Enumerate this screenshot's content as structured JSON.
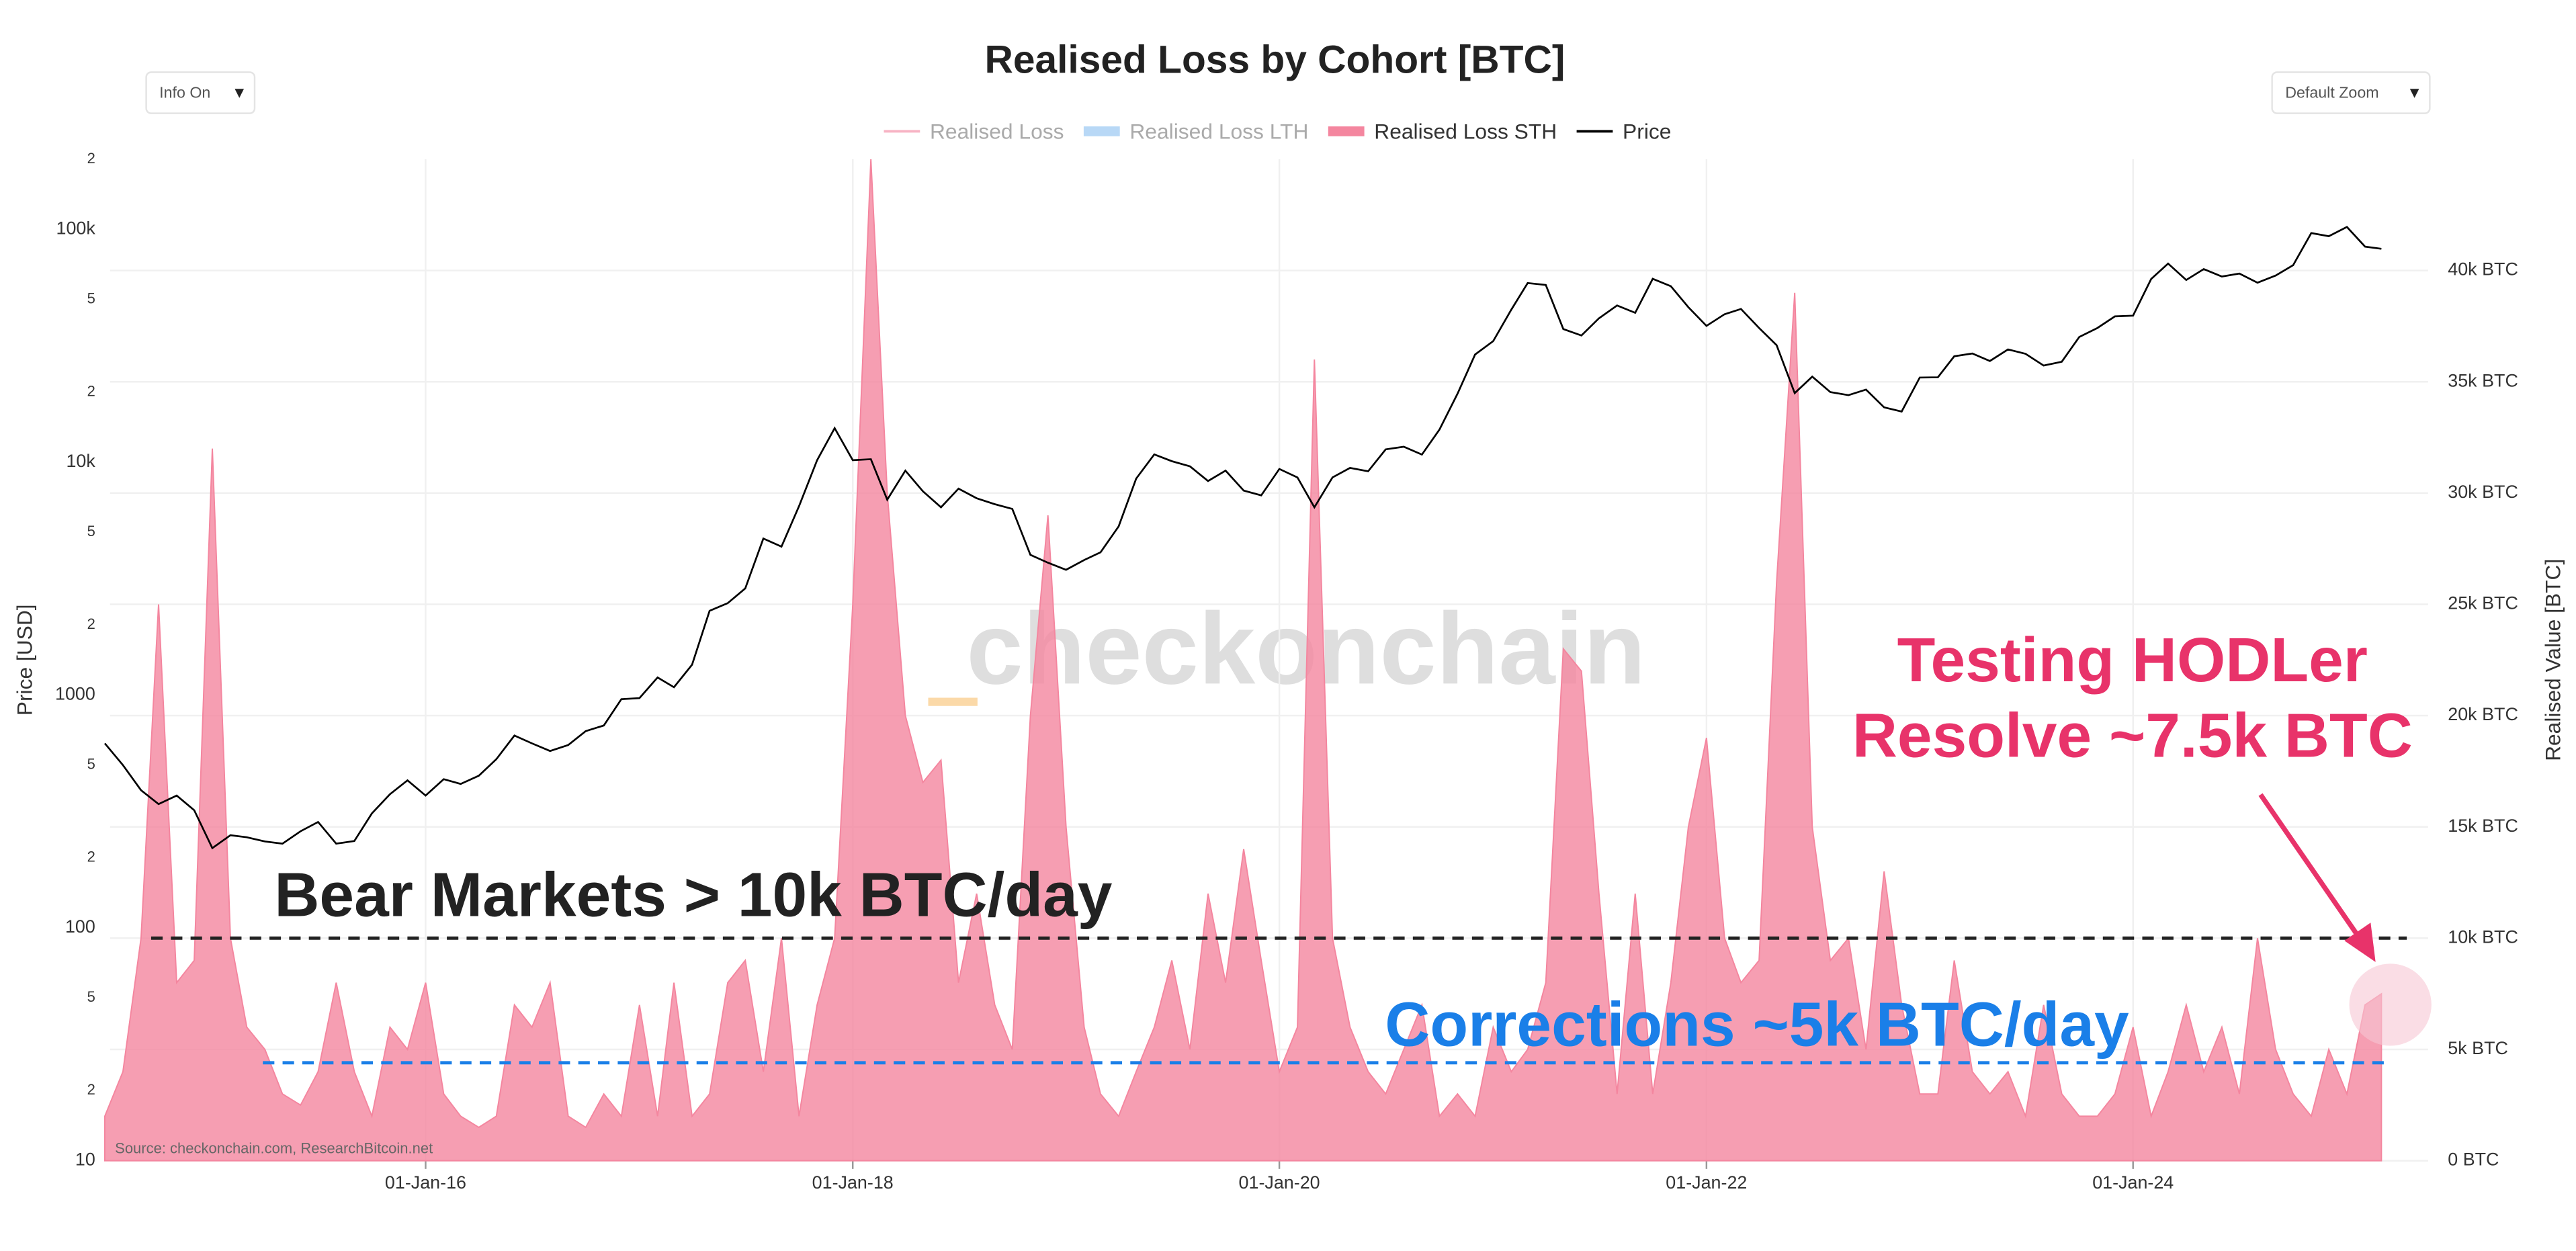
{
  "chart_data": {
    "type": "area-line",
    "title": "Realised Loss by Cohort [BTC]",
    "controls": {
      "info": "Info On",
      "zoom": "Default Zoom",
      "arrow": "▼"
    },
    "ylabel": "Price [USD]",
    "y2label": "Realised Value [BTC]",
    "watermark": "checkonchain",
    "source": "Source: checkonchain.com, ResearchBitcoin.net",
    "legend": [
      {
        "name": "Realised Loss",
        "color": "#f7b3c4",
        "visible": false,
        "symbol": "line"
      },
      {
        "name": "Realised Loss LTH",
        "color": "#b8d8f6",
        "visible": false,
        "symbol": "bar"
      },
      {
        "name": "Realised Loss STH",
        "color": "#f4869f",
        "visible": true,
        "symbol": "bar"
      },
      {
        "name": "Price",
        "color": "#000000",
        "visible": true,
        "symbol": "line"
      }
    ],
    "xlim": [
      "2014-07-10",
      "2025-05-20"
    ],
    "xticks": [
      {
        "value": "2016-01-01",
        "label": "01-Jan-16"
      },
      {
        "value": "2018-01-01",
        "label": "01-Jan-18"
      },
      {
        "value": "2020-01-01",
        "label": "01-Jan-20"
      },
      {
        "value": "2022-01-01",
        "label": "01-Jan-22"
      },
      {
        "value": "2024-01-01",
        "label": "01-Jan-24"
      }
    ],
    "ylim": [
      10,
      200000
    ],
    "log_y": true,
    "yticks": [
      10,
      {
        "value": 20,
        "label": "2"
      },
      {
        "value": 50,
        "label": "5"
      },
      100,
      {
        "value": 200,
        "label": "2"
      },
      {
        "value": 500,
        "label": "5"
      },
      1000,
      {
        "value": 2000,
        "label": "2"
      },
      {
        "value": 5000,
        "label": "5"
      },
      {
        "value": 10000,
        "label": "10k"
      },
      {
        "value": 20000,
        "label": "2"
      },
      {
        "value": 50000,
        "label": "5"
      },
      {
        "value": 100000,
        "label": "100k"
      },
      {
        "value": 200000,
        "label": "2"
      }
    ],
    "y2lim": [
      0,
      45000
    ],
    "y2ticks": [
      {
        "value": 0,
        "label": "0 BTC"
      },
      {
        "value": 5000,
        "label": "5k BTC"
      },
      {
        "value": 10000,
        "label": "10k BTC"
      },
      {
        "value": 15000,
        "label": "15k BTC"
      },
      {
        "value": 20000,
        "label": "20k BTC"
      },
      {
        "value": 25000,
        "label": "25k BTC"
      },
      {
        "value": 30000,
        "label": "30k BTC"
      },
      {
        "value": 35000,
        "label": "35k BTC"
      },
      {
        "value": 40000,
        "label": "40k BTC"
      }
    ],
    "grid": true,
    "x": [
      "2014-07",
      "2014-08",
      "2014-09",
      "2014-10",
      "2014-11",
      "2014-12",
      "2015-01",
      "2015-02",
      "2015-03",
      "2015-04",
      "2015-05",
      "2015-06",
      "2015-07",
      "2015-08",
      "2015-09",
      "2015-10",
      "2015-11",
      "2015-12",
      "2016-01",
      "2016-02",
      "2016-03",
      "2016-04",
      "2016-05",
      "2016-06",
      "2016-07",
      "2016-08",
      "2016-09",
      "2016-10",
      "2016-11",
      "2016-12",
      "2017-01",
      "2017-02",
      "2017-03",
      "2017-04",
      "2017-05",
      "2017-06",
      "2017-07",
      "2017-08",
      "2017-09",
      "2017-10",
      "2017-11",
      "2017-12",
      "2018-01",
      "2018-02",
      "2018-03",
      "2018-04",
      "2018-05",
      "2018-06",
      "2018-07",
      "2018-08",
      "2018-09",
      "2018-10",
      "2018-11",
      "2018-12",
      "2019-01",
      "2019-02",
      "2019-03",
      "2019-04",
      "2019-05",
      "2019-06",
      "2019-07",
      "2019-08",
      "2019-09",
      "2019-10",
      "2019-11",
      "2019-12",
      "2020-01",
      "2020-02",
      "2020-03",
      "2020-04",
      "2020-05",
      "2020-06",
      "2020-07",
      "2020-08",
      "2020-09",
      "2020-10",
      "2020-11",
      "2020-12",
      "2021-01",
      "2021-02",
      "2021-03",
      "2021-04",
      "2021-05",
      "2021-06",
      "2021-07",
      "2021-08",
      "2021-09",
      "2021-10",
      "2021-11",
      "2021-12",
      "2022-01",
      "2022-02",
      "2022-03",
      "2022-04",
      "2022-05",
      "2022-06",
      "2022-07",
      "2022-08",
      "2022-09",
      "2022-10",
      "2022-11",
      "2022-12",
      "2023-01",
      "2023-02",
      "2023-03",
      "2023-04",
      "2023-05",
      "2023-06",
      "2023-07",
      "2023-08",
      "2023-09",
      "2023-10",
      "2023-11",
      "2023-12",
      "2024-01",
      "2024-02",
      "2024-03",
      "2024-04",
      "2024-05",
      "2024-06",
      "2024-07",
      "2024-08",
      "2024-09",
      "2024-10",
      "2024-11",
      "2024-12",
      "2025-01",
      "2025-02",
      "2025-03"
    ],
    "series": [
      {
        "name": "Realised Loss STH",
        "color": "#f4869f",
        "axis": "y2",
        "kind": "area",
        "values": [
          2000,
          4000,
          10000,
          25000,
          8000,
          9000,
          32000,
          10000,
          6000,
          5000,
          3000,
          2500,
          4000,
          8000,
          4000,
          2000,
          6000,
          5000,
          8000,
          3000,
          2000,
          1500,
          2000,
          7000,
          6000,
          8000,
          2000,
          1500,
          3000,
          2000,
          7000,
          2000,
          8000,
          2000,
          3000,
          8000,
          9000,
          4000,
          10000,
          2000,
          7000,
          10000,
          25000,
          45000,
          30000,
          20000,
          17000,
          18000,
          8000,
          12000,
          7000,
          5000,
          20000,
          29000,
          15000,
          6000,
          3000,
          2000,
          4000,
          6000,
          9000,
          5000,
          12000,
          8000,
          14000,
          9000,
          4000,
          6000,
          36000,
          10000,
          6000,
          4000,
          3000,
          5000,
          7000,
          2000,
          3000,
          2000,
          6000,
          4000,
          5000,
          8000,
          23000,
          22000,
          12000,
          3000,
          12000,
          3000,
          8000,
          15000,
          19000,
          10000,
          8000,
          9000,
          26000,
          39000,
          15000,
          9000,
          10000,
          5000,
          13000,
          7000,
          3000,
          3000,
          9000,
          4000,
          3000,
          4000,
          2000,
          7000,
          3000,
          2000,
          2000,
          3000,
          6000,
          2000,
          4000,
          7000,
          4000,
          6000,
          3000,
          10000,
          5000,
          3000,
          2000,
          5000,
          3000,
          7000,
          7500
        ]
      },
      {
        "name": "Price",
        "color": "#000000",
        "axis": "y",
        "kind": "line",
        "values": [
          620,
          500,
          390,
          340,
          370,
          320,
          220,
          250,
          245,
          235,
          230,
          260,
          285,
          230,
          236,
          310,
          375,
          430,
          370,
          435,
          415,
          450,
          530,
          670,
          620,
          575,
          610,
          700,
          740,
          960,
          970,
          1190,
          1080,
          1350,
          2300,
          2480,
          2870,
          4700,
          4340,
          6470,
          10200,
          14000,
          10200,
          10300,
          6900,
          9200,
          7500,
          6400,
          7700,
          7000,
          6600,
          6300,
          4000,
          3700,
          3450,
          3800,
          4100,
          5300,
          8500,
          10800,
          10100,
          9600,
          8300,
          9200,
          7550,
          7200,
          9350,
          8600,
          6400,
          8600,
          9450,
          9140,
          11350,
          11650,
          10780,
          13800,
          19700,
          29000,
          33100,
          45200,
          58800,
          57700,
          37300,
          35000,
          41500,
          47100,
          43800,
          61300,
          57000,
          46300,
          38500,
          43200,
          45500,
          37700,
          31800,
          19800,
          23300,
          20000,
          19400,
          20500,
          17200,
          16500,
          23100,
          23150,
          28500,
          29300,
          27200,
          30500,
          29200,
          26000,
          27000,
          34500,
          37700,
          42300,
          42600,
          61200,
          71300,
          60600,
          67500,
          62700,
          64600,
          59000,
          63300,
          70200,
          96400,
          93400,
          102400,
          84300,
          82500
        ]
      }
    ],
    "levels": [
      {
        "text": "Bear Markets > 10k BTC/day",
        "value": 10000,
        "color": "#222222"
      },
      {
        "text": "Corrections ~5k BTC/day",
        "value": 4400,
        "color": "#1a7fe8"
      }
    ],
    "callout": {
      "lines": [
        "Testing HODLer",
        "Resolve ~7.5k BTC"
      ],
      "color": "#e8336a"
    }
  }
}
